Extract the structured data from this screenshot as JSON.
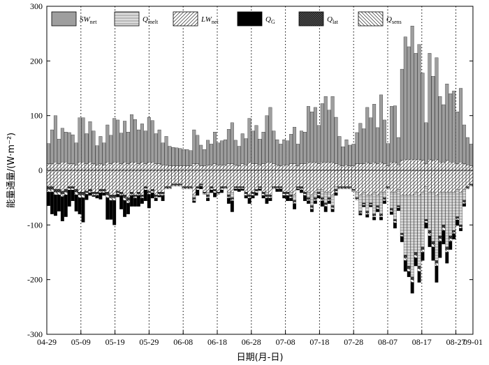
{
  "chart_data": {
    "type": "bar",
    "stacked": true,
    "xlabel": "日期(月-日)",
    "ylabel": "能量通量/(W·m⁻²)",
    "ylim": [
      -300,
      300
    ],
    "yticks": [
      -300,
      -200,
      -100,
      0,
      100,
      200,
      300
    ],
    "x_start": "04-29",
    "x_end": "09-01",
    "x_ticks": [
      "04-29",
      "05-09",
      "05-19",
      "05-29",
      "06-08",
      "06-18",
      "06-28",
      "07-08",
      "07-18",
      "07-28",
      "08-07",
      "08-17",
      "08-27",
      "09-01"
    ],
    "x_tick_day_offsets": [
      0,
      10,
      20,
      30,
      40,
      50,
      60,
      70,
      80,
      90,
      100,
      110,
      120,
      125
    ],
    "grid": "vertical dotted lines at each tick",
    "legend": [
      {
        "key": "SW",
        "main": "SW",
        "sub": "net"
      },
      {
        "key": "Qmelt",
        "main": "Q",
        "sub": "melt"
      },
      {
        "key": "LW",
        "main": "LW",
        "sub": "net"
      },
      {
        "key": "QG",
        "main": "Q",
        "sub": "G"
      },
      {
        "key": "Qlat",
        "main": "Q",
        "sub": "lat"
      },
      {
        "key": "Qsens",
        "main": "Q",
        "sub": "sens"
      }
    ],
    "legend_position": "top",
    "colors": {
      "SW": "#9e9e9e",
      "Qmelt": "#d8d8d8",
      "LW": "#ffffff",
      "QG": "#000000",
      "Qlat": "#1a1a1a",
      "Qsens": "#ffffff",
      "axis": "#000000"
    },
    "series": [
      {
        "name": "SWnet",
        "values": [
          37,
          62,
          85,
          45,
          62,
          55,
          57,
          53,
          40,
          81,
          81,
          55,
          74,
          60,
          35,
          50,
          40,
          68,
          52,
          80,
          77,
          56,
          75,
          58,
          87,
          78,
          62,
          70,
          60,
          82,
          76,
          55,
          62,
          40,
          52,
          36,
          34,
          33,
          32,
          30,
          30,
          28,
          62,
          52,
          38,
          30,
          45,
          38,
          58,
          40,
          44,
          46,
          63,
          75,
          45,
          36,
          55,
          48,
          80,
          60,
          70,
          47,
          58,
          85,
          100,
          60,
          46,
          40,
          46,
          44,
          54,
          67,
          40,
          60,
          58,
          102,
          92,
          100,
          70,
          107,
          120,
          95,
          120,
          85,
          52,
          35,
          46,
          38,
          40,
          57,
          74,
          64,
          100,
          84,
          106,
          66,
          123,
          80,
          41,
          102,
          103,
          50,
          167,
          224,
          206,
          244,
          194,
          210,
          160,
          75,
          194,
          154,
          186,
          120,
          105,
          140,
          125,
          130,
          95,
          135,
          71,
          50,
          40
        ]
      },
      {
        "name": "Qmelt",
        "values": [
          0,
          0,
          0,
          0,
          0,
          0,
          0,
          0,
          0,
          0,
          0,
          0,
          0,
          0,
          0,
          0,
          0,
          0,
          0,
          0,
          0,
          0,
          0,
          0,
          0,
          0,
          0,
          0,
          0,
          0,
          0,
          0,
          0,
          0,
          0,
          0,
          0,
          0,
          0,
          0,
          0,
          0,
          -5,
          0,
          0,
          0,
          -5,
          0,
          0,
          0,
          0,
          0,
          -5,
          -10,
          0,
          0,
          0,
          0,
          0,
          0,
          0,
          0,
          0,
          -5,
          0,
          0,
          0,
          0,
          0,
          0,
          -5,
          -10,
          0,
          0,
          0,
          -10,
          -20,
          -10,
          -5,
          -15,
          -20,
          -10,
          -20,
          -5,
          0,
          0,
          0,
          0,
          0,
          -10,
          -30,
          -20,
          -30,
          -15,
          -40,
          -20,
          -40,
          -10,
          0,
          -30,
          -50,
          -30,
          -70,
          -110,
          -130,
          -150,
          -110,
          -130,
          -100,
          -60,
          -70,
          -90,
          -120,
          -80,
          -60,
          -100,
          -80,
          -70,
          -50,
          -60,
          -20,
          0,
          0
        ]
      },
      {
        "name": "LWnet",
        "values": [
          -30,
          -30,
          -35,
          -35,
          -38,
          -35,
          -30,
          -30,
          -35,
          -40,
          -40,
          -38,
          -35,
          -40,
          -40,
          -35,
          -35,
          -40,
          -45,
          -45,
          -38,
          -40,
          -45,
          -50,
          -40,
          -45,
          -40,
          -45,
          -30,
          -38,
          -35,
          -45,
          -40,
          -40,
          -30,
          -30,
          -25,
          -25,
          -25,
          -30,
          -30,
          -30,
          -45,
          -30,
          -25,
          -40,
          -40,
          -30,
          -35,
          -40,
          -30,
          -30,
          -40,
          -40,
          -30,
          -30,
          -30,
          -40,
          -45,
          -40,
          -35,
          -30,
          -40,
          -40,
          -45,
          -30,
          -30,
          -30,
          -40,
          -40,
          -40,
          -45,
          -30,
          -30,
          -40,
          -40,
          -45,
          -40,
          -35,
          -35,
          -40,
          -40,
          -45,
          -30,
          -30,
          -30,
          -30,
          -30,
          -35,
          -40,
          -45,
          -40,
          -45,
          -45,
          -40,
          -45,
          -40,
          -40,
          -30,
          -40,
          -40,
          -35,
          -45,
          -45,
          -45,
          -45,
          -40,
          -45,
          -40,
          -30,
          -40,
          -40,
          -45,
          -40,
          -40,
          -40,
          -40,
          -40,
          -35,
          -40,
          -35,
          -30,
          -25
        ]
      },
      {
        "name": "QG",
        "values": [
          -25,
          -40,
          -38,
          -30,
          -45,
          -40,
          -30,
          -20,
          -30,
          -30,
          -45,
          -10,
          -5,
          -2,
          -5,
          -12,
          -5,
          -40,
          -35,
          -45,
          -5,
          -25,
          -30,
          -20,
          -20,
          -15,
          -20,
          -10,
          -20,
          -25,
          -10,
          -5,
          -3,
          -10,
          0,
          0,
          0,
          0,
          0,
          0,
          0,
          0,
          -3,
          -10,
          -5,
          0,
          -5,
          -5,
          -8,
          0,
          -5,
          0,
          -10,
          -20,
          -3,
          -5,
          -3,
          -5,
          -10,
          -5,
          -5,
          -3,
          -5,
          -10,
          -5,
          0,
          -5,
          -5,
          -5,
          -10,
          -5,
          -10,
          -2,
          -5,
          -10,
          -5,
          -5,
          -5,
          -5,
          -10,
          -10,
          -5,
          -5,
          -5,
          0,
          0,
          0,
          0,
          0,
          0,
          -3,
          -3,
          -5,
          -3,
          -5,
          -5,
          -5,
          -5,
          0,
          -5,
          -10,
          -5,
          -10,
          -20,
          -10,
          -20,
          -15,
          -20,
          -15,
          -10,
          -20,
          -25,
          -30,
          -30,
          -25,
          -20,
          -15,
          -10,
          -10,
          -5,
          -5,
          0,
          0
        ]
      },
      {
        "name": "Qlat",
        "values": [
          -5,
          -5,
          -5,
          -5,
          -5,
          -5,
          -3,
          -3,
          -5,
          -5,
          -5,
          -3,
          -3,
          -3,
          -3,
          -3,
          -3,
          -5,
          -5,
          -5,
          -3,
          -3,
          -5,
          -5,
          -3,
          -3,
          -3,
          -3,
          -3,
          -3,
          -3,
          -3,
          -3,
          -3,
          -2,
          -2,
          -2,
          -2,
          -2,
          -2,
          -2,
          -2,
          -3,
          -3,
          -2,
          -2,
          -3,
          -3,
          -3,
          -2,
          -3,
          -2,
          -3,
          -3,
          -2,
          -2,
          -2,
          -3,
          -3,
          -3,
          -3,
          -2,
          -3,
          -3,
          -3,
          -2,
          -2,
          -2,
          -3,
          -3,
          -3,
          -3,
          -2,
          -3,
          -3,
          -3,
          -3,
          -3,
          -3,
          -3,
          -3,
          -3,
          -3,
          -3,
          -2,
          -2,
          -2,
          -2,
          -2,
          -2,
          -2,
          -2,
          -3,
          -2,
          -3,
          -3,
          -3,
          -3,
          -2,
          -3,
          -3,
          -2,
          -3,
          -5,
          -5,
          -5,
          -5,
          -5,
          -5,
          -3,
          -5,
          -5,
          -5,
          -5,
          -5,
          -5,
          -5,
          -3,
          -3,
          -3,
          -3,
          -2,
          -2
        ]
      },
      {
        "name": "Qsens",
        "values": [
          -5,
          -5,
          -5,
          -5,
          -5,
          -5,
          -3,
          -3,
          -5,
          -5,
          -5,
          -3,
          -3,
          -3,
          -3,
          -3,
          -3,
          -5,
          -5,
          -5,
          -3,
          -3,
          -5,
          -5,
          -3,
          -3,
          -3,
          -3,
          -3,
          -3,
          -3,
          -3,
          -3,
          -3,
          -2,
          -2,
          -2,
          -2,
          -2,
          -2,
          -2,
          -2,
          -3,
          -3,
          -2,
          -2,
          -3,
          -3,
          -3,
          -2,
          -3,
          -2,
          -3,
          -3,
          -2,
          -2,
          -2,
          -3,
          -3,
          -3,
          -3,
          -2,
          -3,
          -3,
          -3,
          -2,
          -2,
          -2,
          -3,
          -3,
          -3,
          -3,
          -2,
          -3,
          -3,
          -3,
          -3,
          -3,
          -3,
          -3,
          -3,
          -3,
          -3,
          -3,
          -2,
          -2,
          -2,
          -2,
          -2,
          -2,
          -2,
          -2,
          -3,
          -2,
          -3,
          -3,
          -3,
          -3,
          -2,
          -3,
          -3,
          -2,
          -3,
          -5,
          -5,
          -5,
          -5,
          -5,
          -5,
          -3,
          -5,
          -5,
          -5,
          -5,
          -5,
          -5,
          -5,
          -3,
          -3,
          -3,
          -3,
          -2,
          -2
        ]
      }
    ],
    "positive_extras": {
      "name": "LWnet_and_other_positive",
      "values": [
        12,
        12,
        15,
        12,
        15,
        15,
        12,
        12,
        10,
        15,
        15,
        12,
        15,
        12,
        10,
        12,
        10,
        15,
        12,
        15,
        15,
        12,
        15,
        12,
        15,
        15,
        12,
        15,
        12,
        15,
        15,
        12,
        12,
        10,
        10,
        8,
        8,
        8,
        8,
        8,
        8,
        8,
        12,
        12,
        8,
        8,
        10,
        10,
        12,
        10,
        10,
        10,
        12,
        12,
        10,
        8,
        12,
        10,
        15,
        12,
        12,
        10,
        12,
        15,
        15,
        12,
        10,
        8,
        10,
        10,
        12,
        12,
        8,
        12,
        12,
        15,
        15,
        15,
        12,
        15,
        15,
        15,
        15,
        12,
        10,
        8,
        10,
        8,
        8,
        12,
        12,
        12,
        15,
        12,
        15,
        12,
        15,
        12,
        8,
        15,
        15,
        10,
        18,
        20,
        20,
        20,
        20,
        20,
        18,
        12,
        20,
        18,
        20,
        15,
        15,
        18,
        15,
        15,
        12,
        15,
        12,
        10,
        8
      ]
    }
  }
}
